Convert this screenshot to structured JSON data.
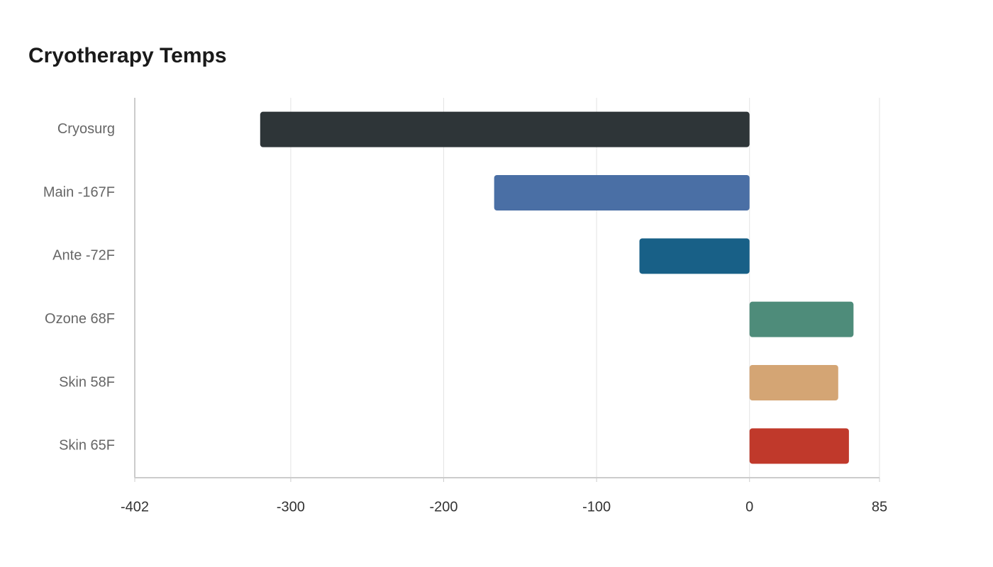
{
  "chart_data": {
    "type": "bar",
    "orientation": "horizontal",
    "title": "Cryotherapy Temps",
    "categories": [
      "Cryosurg",
      "Main -167F",
      "Ante -72F",
      "Ozone 68F",
      "Skin 58F",
      "Skin 65F"
    ],
    "values": [
      -320,
      -167,
      -72,
      68,
      58,
      65
    ],
    "colors": [
      "#2e3538",
      "#4a6fa5",
      "#186087",
      "#4e8c7a",
      "#d4a574",
      "#c0392b"
    ],
    "xlim": [
      -402,
      85
    ],
    "xticks": [
      -402,
      -300,
      -200,
      -100,
      0,
      85
    ],
    "grid": true
  }
}
